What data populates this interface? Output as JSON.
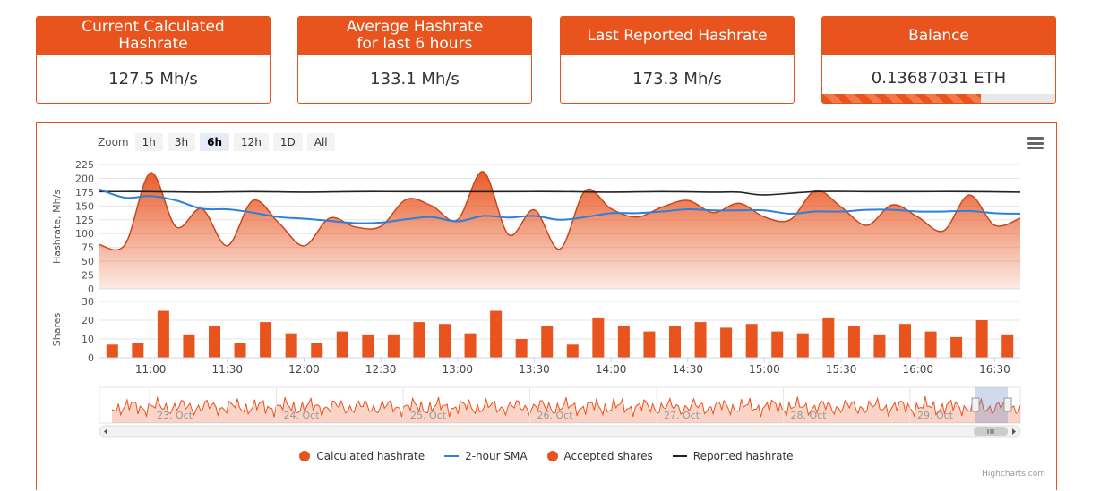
{
  "cards": [
    {
      "title": "Current Calculated\nHashrate",
      "value": "127.5 Mh/s"
    },
    {
      "title": "Average Hashrate\nfor last 6 hours",
      "value": "133.1 Mh/s"
    },
    {
      "title": "Last Reported Hashrate",
      "value": "173.3 Mh/s"
    },
    {
      "title": "Balance",
      "value": "0.13687031 ETH",
      "progress_fraction": 0.68
    }
  ],
  "zoom": {
    "label": "Zoom",
    "buttons": [
      "1h",
      "3h",
      "6h",
      "12h",
      "1D",
      "All"
    ],
    "active": "6h"
  },
  "colors": {
    "accent": "#e8531e",
    "sma": "#2f7ed8",
    "reported": "#222222"
  },
  "legend": {
    "calculated": "Calculated hashrate",
    "sma": "2-hour SMA",
    "shares": "Accepted shares",
    "reported": "Reported hashrate"
  },
  "credits": "Highcharts.com",
  "navigator": {
    "date_labels": [
      "23. Oct",
      "24. Oct",
      "25. Oct",
      "26. Oct",
      "27. Oct",
      "28. Oct",
      "29. Oct"
    ]
  },
  "chart_data": {
    "type": "area",
    "x_tick_labels": [
      "11:00",
      "11:30",
      "12:00",
      "12:30",
      "13:00",
      "13:30",
      "14:00",
      "14:30",
      "15:00",
      "15:30",
      "16:00",
      "16:30"
    ],
    "x_range": [
      "10:40",
      "16:40"
    ],
    "hashrate_axis": {
      "label": "Hashrate, Mh/s",
      "ticks": [
        0,
        25,
        50,
        75,
        100,
        125,
        150,
        175,
        200,
        225
      ],
      "ylim": [
        0,
        225
      ]
    },
    "shares_axis": {
      "label": "Shares",
      "ticks": [
        0,
        10,
        20,
        30
      ],
      "ylim": [
        0,
        30
      ]
    },
    "series": [
      {
        "name": "Calculated hashrate",
        "x": [
          "10:40",
          "10:50",
          "11:00",
          "11:10",
          "11:20",
          "11:30",
          "11:40",
          "11:50",
          "12:00",
          "12:10",
          "12:20",
          "12:30",
          "12:40",
          "12:50",
          "13:00",
          "13:10",
          "13:20",
          "13:30",
          "13:40",
          "13:50",
          "14:00",
          "14:10",
          "14:20",
          "14:30",
          "14:40",
          "14:50",
          "15:00",
          "15:10",
          "15:20",
          "15:30",
          "15:40",
          "15:50",
          "16:00",
          "16:10",
          "16:20",
          "16:30",
          "16:40"
        ],
        "values": [
          80,
          80,
          210,
          112,
          145,
          78,
          160,
          120,
          78,
          128,
          112,
          113,
          162,
          150,
          125,
          212,
          98,
          143,
          72,
          178,
          145,
          130,
          148,
          160,
          138,
          155,
          130,
          125,
          178,
          148,
          115,
          152,
          130,
          105,
          170,
          115,
          128
        ]
      },
      {
        "name": "2-hour SMA",
        "x": [
          "10:40",
          "10:50",
          "11:00",
          "11:10",
          "11:20",
          "11:30",
          "11:40",
          "11:50",
          "12:00",
          "12:10",
          "12:20",
          "12:30",
          "12:40",
          "12:50",
          "13:00",
          "13:10",
          "13:20",
          "13:30",
          "13:40",
          "13:50",
          "14:00",
          "14:10",
          "14:20",
          "14:30",
          "14:40",
          "14:50",
          "15:00",
          "15:10",
          "15:20",
          "15:30",
          "15:40",
          "15:50",
          "16:00",
          "16:10",
          "16:20",
          "16:30",
          "16:40"
        ],
        "values": [
          180,
          165,
          168,
          160,
          145,
          144,
          138,
          130,
          127,
          123,
          119,
          120,
          126,
          130,
          122,
          132,
          129,
          132,
          125,
          130,
          137,
          137,
          140,
          144,
          142,
          142,
          142,
          136,
          140,
          140,
          143,
          143,
          140,
          140,
          141,
          137,
          136
        ]
      },
      {
        "name": "Reported hashrate",
        "x": [
          "10:40",
          "11:00",
          "11:20",
          "11:40",
          "12:00",
          "12:20",
          "12:40",
          "13:00",
          "13:20",
          "13:40",
          "14:00",
          "14:20",
          "14:40",
          "14:50",
          "15:00",
          "15:20",
          "15:40",
          "16:00",
          "16:20",
          "16:40"
        ],
        "values": [
          176,
          176,
          175,
          176,
          175,
          176,
          176,
          176,
          176,
          176,
          175,
          176,
          175,
          175,
          170,
          176,
          176,
          176,
          176,
          175
        ]
      },
      {
        "name": "Accepted shares",
        "x": [
          "10:45",
          "10:55",
          "11:05",
          "11:15",
          "11:25",
          "11:35",
          "11:45",
          "11:55",
          "12:05",
          "12:15",
          "12:25",
          "12:35",
          "12:45",
          "12:55",
          "13:05",
          "13:15",
          "13:25",
          "13:35",
          "13:45",
          "13:55",
          "14:05",
          "14:15",
          "14:25",
          "14:35",
          "14:45",
          "14:55",
          "15:05",
          "15:15",
          "15:25",
          "15:35",
          "15:45",
          "15:55",
          "16:05",
          "16:15",
          "16:25",
          "16:35"
        ],
        "values": [
          7,
          8,
          25,
          12,
          17,
          8,
          19,
          13,
          8,
          14,
          12,
          12,
          19,
          18,
          13,
          25,
          10,
          17,
          7,
          21,
          17,
          14,
          17,
          19,
          16,
          18,
          14,
          13,
          21,
          17,
          12,
          18,
          14,
          11,
          20,
          12
        ]
      }
    ]
  }
}
